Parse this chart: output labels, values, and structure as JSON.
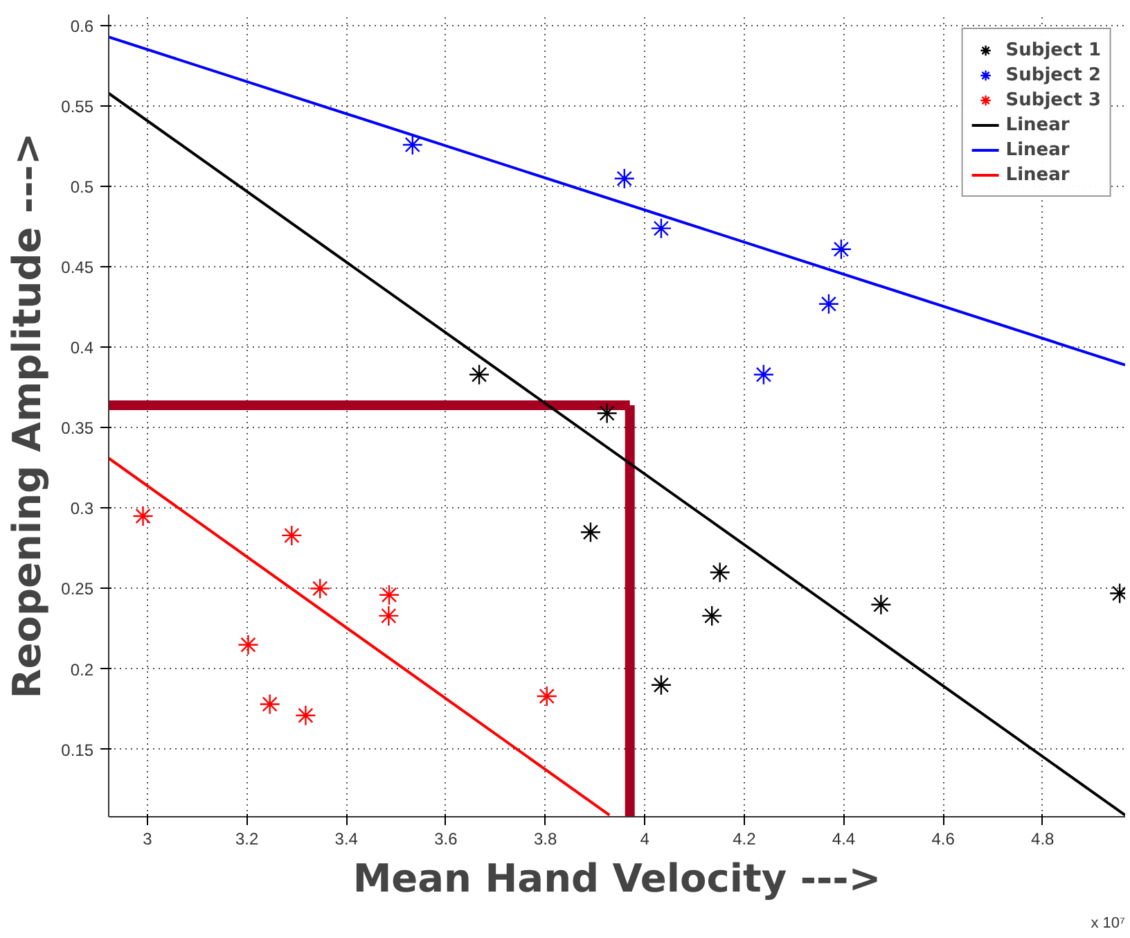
{
  "chart_data": {
    "type": "scatter",
    "xlabel": "Mean Hand Velocity --->",
    "ylabel": "Reopening Amplitude --->",
    "xlim": [
      2.922,
      4.966
    ],
    "ylim": [
      0.108,
      0.607
    ],
    "xticks": [
      3,
      3.2,
      3.4,
      3.6,
      3.8,
      4,
      4.2,
      4.4,
      4.6,
      4.8
    ],
    "yticks": [
      0.15,
      0.2,
      0.25,
      0.3,
      0.35,
      0.4,
      0.45,
      0.5,
      0.55,
      0.6
    ],
    "grid": true,
    "legend": "top right",
    "marker": "cross",
    "annotations": [
      "x 10⁷"
    ],
    "series": [
      {
        "name": "Subject 1",
        "color": "#000000",
        "x": [
          3.667,
          3.924,
          3.891,
          4.151,
          4.135,
          4.033,
          4.475,
          4.955
        ],
        "values": [
          0.383,
          0.359,
          0.285,
          0.26,
          0.233,
          0.19,
          0.24,
          0.247
        ]
      },
      {
        "name": "Subject 2",
        "color": "#0000ff",
        "x": [
          3.533,
          3.959,
          4.033,
          4.395,
          4.37,
          4.239
        ],
        "values": [
          0.526,
          0.505,
          0.474,
          0.461,
          0.427,
          0.383
        ]
      },
      {
        "name": "Subject 3",
        "color": "#ff0000",
        "x": [
          2.991,
          3.29,
          3.347,
          3.486,
          3.485,
          3.2025,
          3.246,
          3.318,
          3.803
        ],
        "values": [
          0.295,
          0.283,
          0.25,
          0.246,
          0.233,
          0.215,
          0.178,
          0.171,
          0.183
        ]
      },
      {
        "name": "Linear",
        "type": "line",
        "marker": "none",
        "color": "#000000",
        "x": [
          2.922,
          4.966
        ],
        "values": [
          0.558,
          0.109
        ]
      },
      {
        "name": "Linear",
        "type": "line",
        "marker": "none",
        "color": "#0000ff",
        "x": [
          2.922,
          4.966
        ],
        "values": [
          0.593,
          0.389
        ]
      },
      {
        "name": "Linear",
        "type": "line",
        "marker": "none",
        "color": "#ff0000",
        "x": [
          2.922,
          3.929
        ],
        "values": [
          0.331,
          0.109
        ]
      }
    ],
    "ref_lines": [
      {
        "axis": "y",
        "value": 0.364,
        "color": "#a50021"
      },
      {
        "axis": "x",
        "value": 3.97,
        "color": "#a50021"
      }
    ]
  }
}
